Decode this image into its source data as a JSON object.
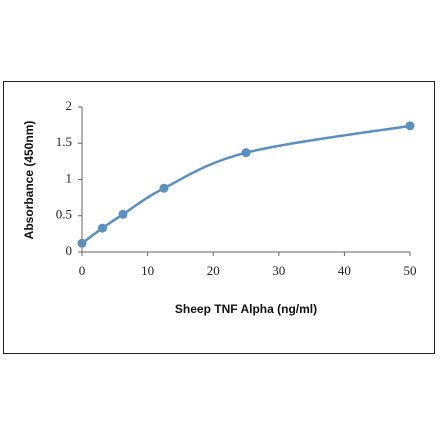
{
  "chart_data": {
    "type": "line",
    "x_label": "Sheep TNF Alpha (ng/ml)",
    "y_label": "Absorbance (450nm)",
    "x": [
      0,
      3.125,
      6.25,
      12.5,
      25,
      50
    ],
    "values": [
      0.12,
      0.33,
      0.52,
      0.88,
      1.37,
      1.74
    ],
    "color": "#5b8fc0",
    "smooth": true,
    "markers": true,
    "xlim": [
      0,
      50
    ],
    "xticks": [
      0,
      10,
      20,
      30,
      40,
      50
    ],
    "ylim": [
      0,
      2
    ],
    "yticks": [
      0,
      0.5,
      1,
      1.5,
      2
    ]
  }
}
